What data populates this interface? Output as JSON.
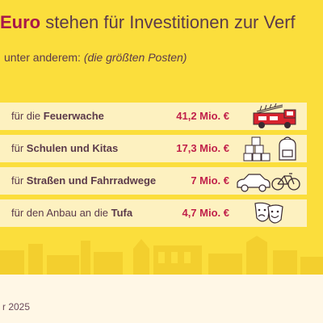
{
  "headline": {
    "prefix": "",
    "amount": "Euro",
    "rest": " stehen für Investitionen zur Verf"
  },
  "subline": {
    "text": "unter anderem: ",
    "note": "(die größten Posten)"
  },
  "items": [
    {
      "prefix": "für die ",
      "bold": "Feuerwache",
      "suffix": "",
      "amount": "41,2 Mio. €",
      "icons": [
        "fire-truck-icon"
      ]
    },
    {
      "prefix": "für ",
      "bold": "Schulen und Kitas",
      "suffix": "",
      "amount": "17,3 Mio. €",
      "icons": [
        "toy-blocks-icon",
        "school-backpack-icon"
      ]
    },
    {
      "prefix": "für ",
      "bold": "Straßen und Fahrradwege",
      "suffix": "",
      "amount": "7 Mio. €",
      "icons": [
        "car-icon",
        "bicycle-icon"
      ]
    },
    {
      "prefix": "für den Anbau an die ",
      "bold": "Tufa",
      "suffix": "",
      "amount": "4,7 Mio. €",
      "icons": [
        "theater-masks-icon"
      ]
    }
  ],
  "footer": {
    "text": "r 2025"
  },
  "colors": {
    "background": "#fbde3c",
    "row_background": "#fdf1c0",
    "amount_red": "#c0204a",
    "headline_accent": "#a8174a",
    "text": "#5b3a4a"
  }
}
